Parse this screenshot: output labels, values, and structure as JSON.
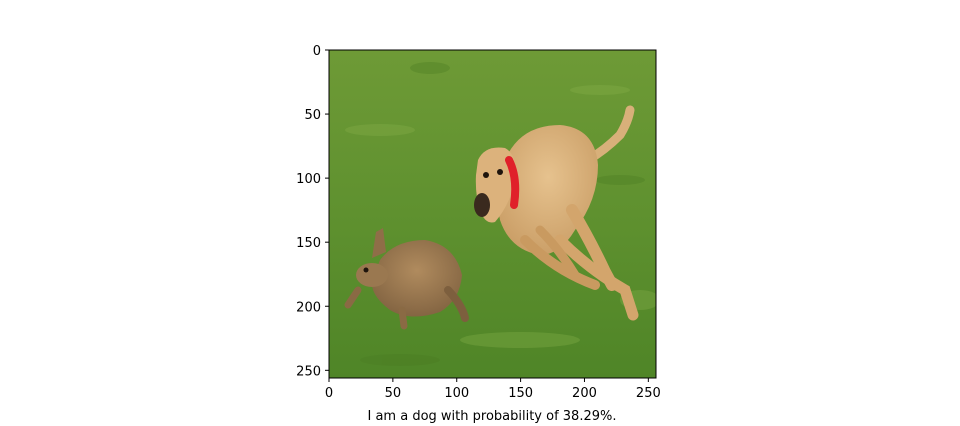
{
  "chart_data": {
    "type": "image",
    "image_extent": {
      "x": [
        0,
        256
      ],
      "y": [
        0,
        256
      ]
    },
    "xlim": [
      0,
      256
    ],
    "ylim": [
      256,
      0
    ],
    "y_axis_inverted": true,
    "xticks": [
      0,
      50,
      100,
      150,
      200,
      250
    ],
    "yticks": [
      0,
      50,
      100,
      150,
      200,
      250
    ],
    "xlabel": "I am a dog  with probability of 38.29%.",
    "ylabel": "",
    "title": "",
    "grid": false,
    "image_content": "photo of a greyhound chasing a hare on green grass",
    "colors": {
      "grass": "#5e8f2e",
      "grass_light": "#7aa63e",
      "dog": "#d8b07a",
      "hare": "#9c7a52",
      "collar": "#e0202a"
    }
  }
}
